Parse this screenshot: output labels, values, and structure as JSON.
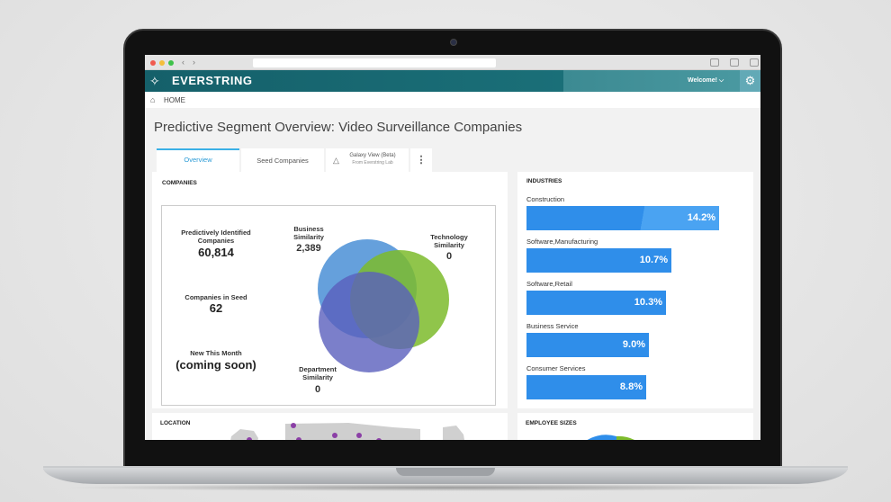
{
  "browser": {
    "back_icon": "‹",
    "forward_icon": "›"
  },
  "app": {
    "brand": "EVERSTRING",
    "logo_glyph": "✧",
    "welcome": "Welcome! ⌵",
    "gear_glyph": "⚙",
    "accent_color": "#15606a"
  },
  "breadcrumb": {
    "home_label": "HOME",
    "home_glyph": "⌂"
  },
  "page": {
    "title": "Predictive Segment Overview: Video Surveillance Companies"
  },
  "tabs": [
    {
      "label": "Overview",
      "active": true
    },
    {
      "label": "Seed Companies",
      "active": false
    },
    {
      "label": "Galaxy View (Beta)",
      "sublabel": "From Everstring Lab",
      "active": false
    },
    {
      "label": "⋮",
      "active": false
    }
  ],
  "companies": {
    "title": "COMPANIES",
    "stats": [
      {
        "label": "Predictively Identified Companies",
        "value": "60,814"
      },
      {
        "label": "Companies in Seed",
        "value": "62"
      },
      {
        "label": "New This Month",
        "value": "(coming soon)"
      }
    ],
    "venn": [
      {
        "label": "Business Similarity",
        "value": "2,389",
        "color": "#4a8fd6"
      },
      {
        "label": "Technology Similarity",
        "value": "0",
        "color": "#7dbb2c"
      },
      {
        "label": "Department Similarity",
        "value": "0",
        "color": "#5a5fbd"
      }
    ]
  },
  "industries": {
    "title": "INDUSTRIES",
    "max_percent": 14.2,
    "items": [
      {
        "label": "Construction",
        "value": "14.2%",
        "percent": 14.2
      },
      {
        "label": "Software,Manufacturing",
        "value": "10.7%",
        "percent": 10.7
      },
      {
        "label": "Software,Retail",
        "value": "10.3%",
        "percent": 10.3
      },
      {
        "label": "Business Service",
        "value": "9.0%",
        "percent": 9.0
      },
      {
        "label": "Consumer Services",
        "value": "8.8%",
        "percent": 8.8
      }
    ]
  },
  "location": {
    "title": "LOCATION"
  },
  "employee_sizes": {
    "title": "EMPLOYEE SIZES"
  }
}
